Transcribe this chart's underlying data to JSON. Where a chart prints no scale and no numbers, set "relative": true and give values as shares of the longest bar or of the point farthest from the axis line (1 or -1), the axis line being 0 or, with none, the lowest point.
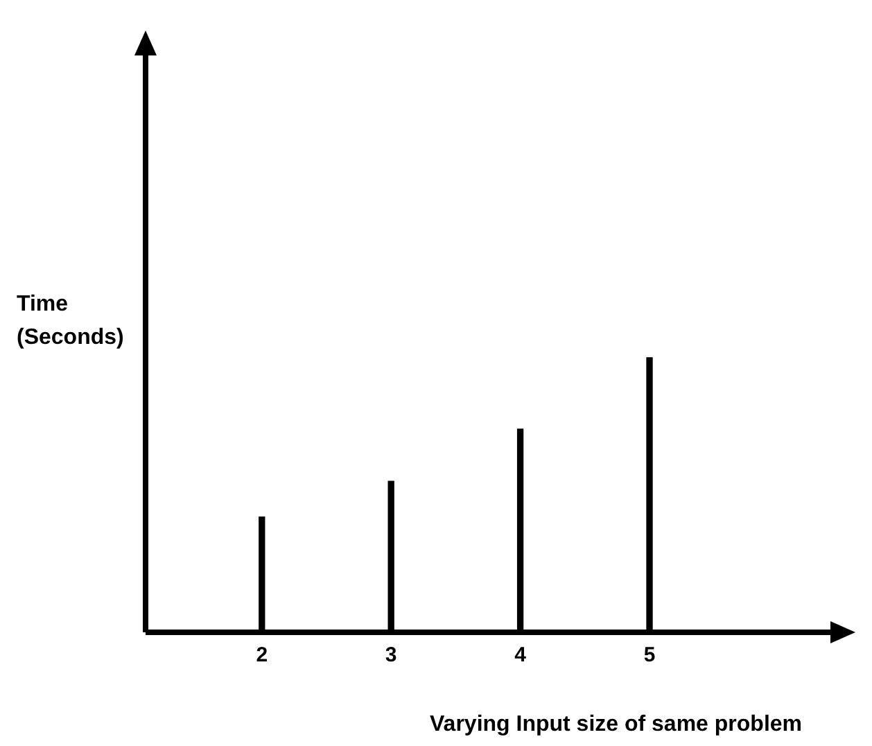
{
  "chart_data": {
    "type": "bar",
    "xlabel": "Varying Input size of same problem",
    "ylabel": "Time\n(Seconds)",
    "x": [
      2,
      3,
      4,
      5
    ],
    "values": [
      0.42,
      0.55,
      0.74,
      1
    ],
    "color": "#000000",
    "relative": true,
    "xlim": [
      1.1,
      6.4
    ],
    "xticks": [
      2,
      3,
      4,
      5
    ]
  }
}
